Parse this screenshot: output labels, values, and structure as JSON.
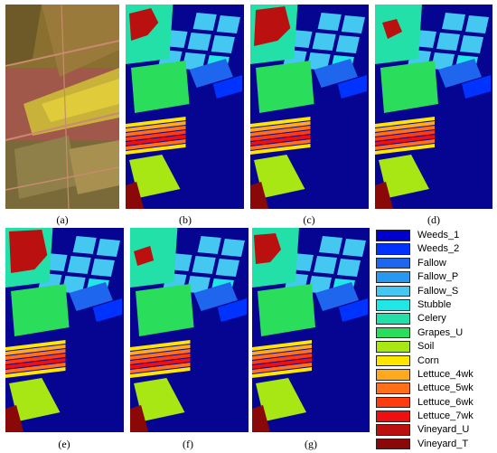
{
  "colors": {
    "background": "#050591",
    "weeds_1": "#0000cc",
    "weeds_2": "#0033ff",
    "fallow": "#1f66ee",
    "fallow_p": "#2899f0",
    "fallow_s": "#44c8f2",
    "stubble": "#22e6e6",
    "celery": "#22e0a8",
    "grapes_u": "#2add5a",
    "soil": "#a8e614",
    "corn": "#ffe600",
    "lettuce_4wk": "#ffaa1e",
    "lettuce_5wk": "#ff7018",
    "lettuce_6wk": "#ff3b10",
    "lettuce_7wk": "#ee1010",
    "vineyard_u": "#bb1010",
    "vineyard_t": "#8a0808",
    "caption": "#000000"
  },
  "panels": [
    {
      "id": "a",
      "caption": "(a)",
      "kind": "false-color image"
    },
    {
      "id": "b",
      "caption": "(b)",
      "kind": "classification map"
    },
    {
      "id": "c",
      "caption": "(c)",
      "kind": "classification map"
    },
    {
      "id": "d",
      "caption": "(d)",
      "kind": "classification map"
    },
    {
      "id": "e",
      "caption": "(e)",
      "kind": "classification map"
    },
    {
      "id": "f",
      "caption": "(f)",
      "kind": "classification map"
    },
    {
      "id": "g",
      "caption": "(g)",
      "kind": "classification map"
    }
  ],
  "legend": {
    "items": [
      {
        "label": "Weeds_1",
        "color": "#0000cc"
      },
      {
        "label": "Weeds_2",
        "color": "#0033ff"
      },
      {
        "label": "Fallow",
        "color": "#1f66ee"
      },
      {
        "label": "Fallow_P",
        "color": "#2899f0"
      },
      {
        "label": "Fallow_S",
        "color": "#44c8f2"
      },
      {
        "label": "Stubble",
        "color": "#22e6e6"
      },
      {
        "label": "Celery",
        "color": "#22e0a8"
      },
      {
        "label": "Grapes_U",
        "color": "#2add5a"
      },
      {
        "label": "Soil",
        "color": "#a8e614"
      },
      {
        "label": "Corn",
        "color": "#ffe600"
      },
      {
        "label": "Lettuce_4wk",
        "color": "#ffaa1e"
      },
      {
        "label": "Lettuce_5wk",
        "color": "#ff7018"
      },
      {
        "label": "Lettuce_6wk",
        "color": "#ff3b10"
      },
      {
        "label": "Lettuce_7wk",
        "color": "#ee1010"
      },
      {
        "label": "Vineyard_U",
        "color": "#bb1010"
      },
      {
        "label": "Vineyard_T",
        "color": "#8a0808"
      }
    ]
  }
}
